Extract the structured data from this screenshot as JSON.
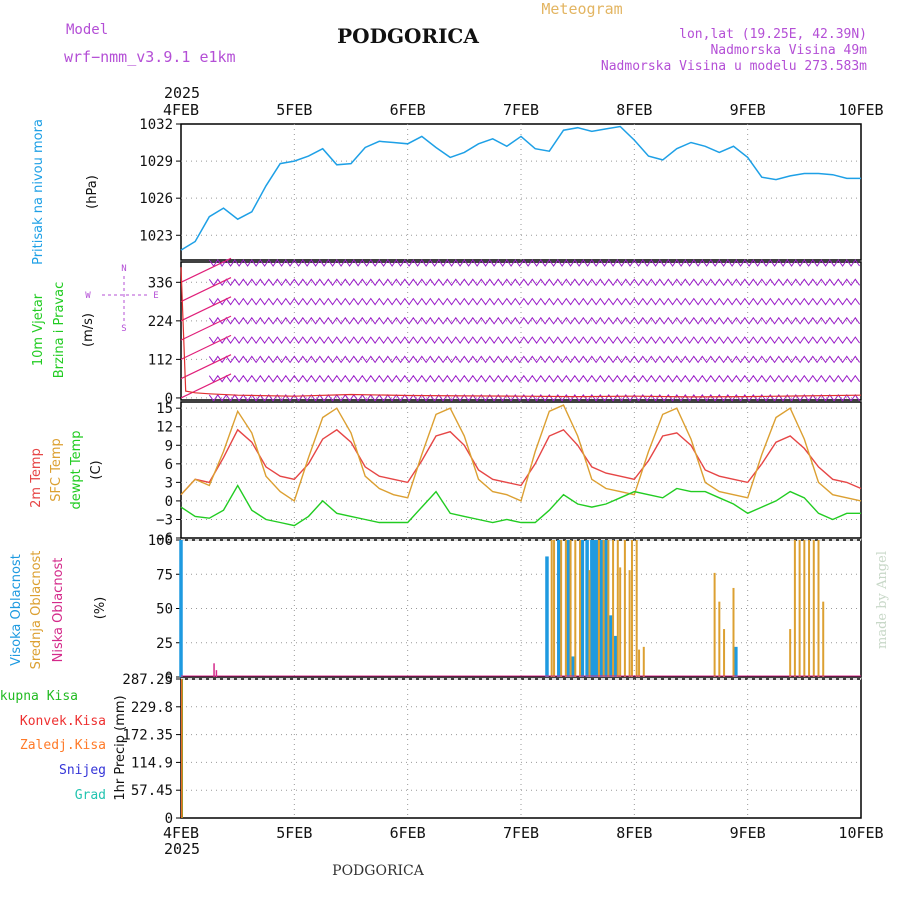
{
  "header": {
    "model_label": "Model",
    "model_name": "wrf−nmm_v3.9.1  e1km",
    "station": "PODGORICA",
    "product": "Meteogram",
    "lonlat": "lon,lat (19.25E, 42.39N)",
    "elevation": "Nadmorska Visina 49m",
    "model_elevation": "Nadmorska Visina u modelu 273.583m",
    "year": "2025",
    "footer_station": "PODGORICA",
    "credit": "made by Angel"
  },
  "colors": {
    "pressure": "#1ea0e6",
    "wind": "#9b1fc9",
    "wind_speed": "#e03030",
    "barb_arrow": "#e0207a",
    "temp2m": "#e64646",
    "sfc_temp": "#dca032",
    "dewpt": "#22cc22",
    "cloud_high": "#1e9ae0",
    "cloud_mid": "#dca032",
    "cloud_low": "#d42a8a",
    "precip_total": "#22bb22",
    "precip_conv": "#ee3030",
    "precip_frozen": "#ff7a28",
    "precip_snow": "#3434d8",
    "precip_hail": "#22c4b0"
  },
  "x_axis": {
    "start": "2025-02-04T00",
    "end": "2025-02-10T00",
    "ticks": [
      "4FEB",
      "5FEB",
      "6FEB",
      "7FEB",
      "8FEB",
      "9FEB",
      "10FEB"
    ]
  },
  "panels": {
    "pressure": {
      "ylabel": "Pritisak na nivou mora",
      "unit": "(hPa)",
      "ticks": [
        "1023",
        "1026",
        "1029",
        "1032"
      ]
    },
    "wind": {
      "ylabel1": "10m Vjetar",
      "ylabel2": "Brzina i Pravac",
      "unit": "(m/s)",
      "ticks": [
        "0",
        "112",
        "224",
        "336"
      ],
      "compass": {
        "n": "N",
        "s": "S",
        "w": "W",
        "e": "E"
      }
    },
    "temp": {
      "label_2m": "2m Temp",
      "label_sfc": "SFC Temp",
      "label_dew": "dewpt Temp",
      "unit": "(C)",
      "ticks": [
        "−6",
        "−3",
        "0",
        "3",
        "6",
        "9",
        "12",
        "15"
      ]
    },
    "cloud": {
      "label_high": "Visoka Oblacnost",
      "label_mid": "Srednja Oblacnost",
      "label_low": "Niska Oblacnost",
      "unit": "(%)",
      "ticks": [
        "0",
        "25",
        "50",
        "75",
        "100"
      ]
    },
    "precip": {
      "legend": [
        "Ukupna Kisa",
        "Konvek.Kisa",
        "Zaledj.Kisa",
        "Snijeg",
        "Grad"
      ],
      "unit": "1hr Precip (mm)",
      "ticks": [
        "0",
        "57.45",
        "114.9",
        "172.35",
        "229.8",
        "287.25"
      ]
    }
  },
  "chart_data": [
    {
      "type": "line",
      "title": "Pritisak na nivou mora",
      "ylabel": "(hPa)",
      "ylim": [
        1021,
        1032
      ],
      "x_hours": [
        0,
        3,
        6,
        9,
        12,
        15,
        18,
        21,
        24,
        27,
        30,
        33,
        36,
        39,
        42,
        45,
        48,
        51,
        54,
        57,
        60,
        63,
        66,
        69,
        72,
        75,
        78,
        81,
        84,
        87,
        90,
        93,
        96,
        99,
        102,
        105,
        108,
        111,
        114,
        117,
        120,
        123,
        126,
        129,
        132,
        135,
        138,
        141,
        144
      ],
      "series": [
        {
          "values": [
            1021.8,
            1022.5,
            1024.5,
            1025.2,
            1024.3,
            1024.9,
            1027.0,
            1028.8,
            1029.0,
            1029.4,
            1030.0,
            1028.7,
            1028.8,
            1030.1,
            1030.6,
            1030.5,
            1030.4,
            1031.0,
            1030.1,
            1029.3,
            1029.7,
            1030.4,
            1030.8,
            1030.2,
            1031.0,
            1030.0,
            1029.8,
            1031.5,
            1031.7,
            1031.4,
            1031.6,
            1031.8,
            1030.7,
            1029.4,
            1029.1,
            1030.0,
            1030.5,
            1030.2,
            1029.7,
            1030.2,
            1029.3,
            1027.7,
            1027.5,
            1027.8,
            1028.0,
            1028.0,
            1027.9,
            1027.6,
            1027.6
          ]
        }
      ]
    },
    {
      "type": "line",
      "title": "10m Vjetar Brzina i Pravac",
      "ylabel": "(m/s)",
      "ylim": [
        -6,
        395
      ],
      "x_hours": [
        0,
        1,
        3,
        6,
        12,
        24,
        36,
        48,
        60,
        72,
        84,
        96,
        108,
        120,
        132,
        144
      ],
      "series": [
        {
          "values": [
            380,
            20,
            15,
            12,
            8,
            5,
            10,
            7,
            6,
            5,
            4,
            5,
            3,
            4,
            6,
            8
          ]
        }
      ]
    },
    {
      "type": "line",
      "title": "2m Temp / SFC Temp / dewpt Temp",
      "ylabel": "(C)",
      "ylim": [
        -6,
        16
      ],
      "x_hours": [
        0,
        3,
        6,
        9,
        12,
        15,
        18,
        21,
        24,
        27,
        30,
        33,
        36,
        39,
        42,
        45,
        48,
        51,
        54,
        57,
        60,
        63,
        66,
        69,
        72,
        75,
        78,
        81,
        84,
        87,
        90,
        93,
        96,
        99,
        102,
        105,
        108,
        111,
        114,
        117,
        120,
        123,
        126,
        129,
        132,
        135,
        138,
        141,
        144
      ],
      "series": [
        {
          "name": "2m Temp",
          "values": [
            1.0,
            3.5,
            3.0,
            7.0,
            11.5,
            9.5,
            5.5,
            4.0,
            3.5,
            6.0,
            10.0,
            11.5,
            9.5,
            5.5,
            4.0,
            3.5,
            3.0,
            6.5,
            10.5,
            11.2,
            9.0,
            5.0,
            3.5,
            3.0,
            2.5,
            6.0,
            10.5,
            11.5,
            9.0,
            5.5,
            4.5,
            4.0,
            3.5,
            6.5,
            10.5,
            11.0,
            9.0,
            5.0,
            4.0,
            3.5,
            3.0,
            6.0,
            9.5,
            10.5,
            8.5,
            5.5,
            3.5,
            3.0,
            2.0
          ]
        },
        {
          "name": "SFC Temp",
          "values": [
            1.0,
            3.5,
            2.5,
            8.0,
            14.5,
            11.0,
            4.0,
            1.5,
            0.0,
            7.0,
            13.5,
            15.0,
            11.0,
            4.0,
            2.0,
            1.0,
            0.5,
            7.5,
            14.0,
            15.0,
            10.5,
            3.5,
            1.5,
            1.0,
            0.0,
            8.0,
            14.5,
            15.5,
            10.5,
            3.5,
            2.0,
            1.5,
            1.0,
            8.0,
            14.0,
            15.0,
            10.0,
            3.0,
            1.5,
            1.0,
            0.5,
            7.5,
            13.5,
            15.0,
            10.0,
            3.0,
            1.0,
            0.5,
            0.0
          ]
        },
        {
          "name": "dewpt Temp",
          "values": [
            -1.0,
            -2.5,
            -2.8,
            -1.5,
            2.5,
            -1.5,
            -3.0,
            -3.5,
            -4.0,
            -2.5,
            0.0,
            -2.0,
            -2.5,
            -3.0,
            -3.5,
            -3.5,
            -3.5,
            -1.0,
            1.5,
            -2.0,
            -2.5,
            -3.0,
            -3.5,
            -3.0,
            -3.5,
            -3.5,
            -1.5,
            1.0,
            -0.5,
            -1.0,
            -0.5,
            0.5,
            1.5,
            1.0,
            0.5,
            2.0,
            1.5,
            1.5,
            0.5,
            -0.5,
            -2.0,
            -1.0,
            0.0,
            1.5,
            0.5,
            -2.0,
            -3.0,
            -2.0,
            -2.0
          ]
        }
      ]
    },
    {
      "type": "bar",
      "title": "Oblacnost",
      "ylabel": "(%)",
      "ylim": [
        0,
        100
      ],
      "series": [
        {
          "name": "Visoka Oblacnost",
          "points": [
            [
              0,
              100
            ],
            [
              77.5,
              88
            ],
            [
              80.0,
              100
            ],
            [
              82.0,
              100
            ],
            [
              83.0,
              15
            ],
            [
              85.0,
              100
            ],
            [
              86.0,
              100
            ],
            [
              87.0,
              100
            ],
            [
              87.5,
              100
            ],
            [
              88.0,
              100
            ],
            [
              89.0,
              100
            ],
            [
              90.0,
              100
            ],
            [
              91.0,
              45
            ],
            [
              92.0,
              30
            ],
            [
              117.5,
              22
            ]
          ]
        },
        {
          "name": "Srednja Oblacnost",
          "points": [
            [
              78.5,
              100
            ],
            [
              79.0,
              100
            ],
            [
              80.5,
              100
            ],
            [
              81.5,
              100
            ],
            [
              82.5,
              100
            ],
            [
              83.5,
              100
            ],
            [
              84.5,
              100
            ],
            [
              86.5,
              78
            ],
            [
              88.5,
              100
            ],
            [
              89.5,
              100
            ],
            [
              90.5,
              100
            ],
            [
              91.5,
              100
            ],
            [
              92.5,
              100
            ],
            [
              93.0,
              80
            ],
            [
              94.0,
              100
            ],
            [
              95.0,
              78
            ],
            [
              95.5,
              100
            ],
            [
              96.5,
              100
            ],
            [
              97.0,
              20
            ],
            [
              98.0,
              22
            ],
            [
              113.0,
              76
            ],
            [
              114.0,
              55
            ],
            [
              115.0,
              35
            ],
            [
              117.0,
              65
            ],
            [
              129.0,
              35
            ],
            [
              130.0,
              100
            ],
            [
              131.0,
              100
            ],
            [
              132.0,
              100
            ],
            [
              133.0,
              100
            ],
            [
              134.0,
              100
            ],
            [
              135.0,
              100
            ],
            [
              136.0,
              55
            ]
          ]
        },
        {
          "name": "Niska Oblacnost",
          "points": [
            [
              7.0,
              10
            ],
            [
              7.5,
              5
            ]
          ]
        }
      ]
    },
    {
      "type": "bar",
      "title": "1hr Precip (mm)",
      "ylim": [
        0,
        287.25
      ],
      "series": [
        {
          "name": "Ukupna Kisa",
          "points": [
            [
              0,
              287.25
            ]
          ]
        },
        {
          "name": "Konvek.Kisa",
          "points": []
        },
        {
          "name": "Zaledj.Kisa",
          "points": [
            [
              0,
              287.25
            ]
          ]
        },
        {
          "name": "Snijeg",
          "points": []
        },
        {
          "name": "Grad",
          "points": []
        }
      ]
    }
  ]
}
